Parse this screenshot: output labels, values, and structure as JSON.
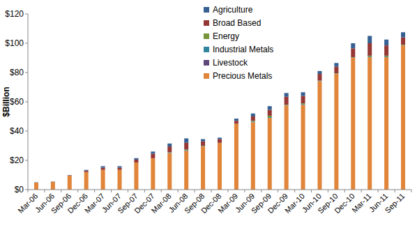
{
  "chart_data": {
    "type": "bar",
    "stacked": true,
    "grid": false,
    "legend": "top-right",
    "ylabel": "$Billion",
    "categories": [
      "Mar-06",
      "Jun-06",
      "Sep-06",
      "Dec-06",
      "Mar-07",
      "Jun-07",
      "Sep-07",
      "Dec-07",
      "Mar-08",
      "Jun-08",
      "Sep-08",
      "Dec-08",
      "Mar-09",
      "Jun-09",
      "Sep-09",
      "Dec-09",
      "Mar-10",
      "Jun-10",
      "Sep-10",
      "Dec-10",
      "Mar-11",
      "Jun-11",
      "Sep-11"
    ],
    "ylim": [
      0,
      120
    ],
    "yticks": [
      {
        "value": 0,
        "label": "$0"
      },
      {
        "value": 20,
        "label": "$20"
      },
      {
        "value": 40,
        "label": "$40"
      },
      {
        "value": 60,
        "label": "$60"
      },
      {
        "value": 80,
        "label": "$80"
      },
      {
        "value": 100,
        "label": "$100"
      },
      {
        "value": 120,
        "label": "$120"
      }
    ],
    "series": [
      {
        "name": "Agriculture",
        "color": "#376092",
        "values": [
          0.2,
          0.2,
          0.2,
          0.5,
          1,
          1,
          1,
          1.5,
          2,
          3,
          1.5,
          1,
          1.5,
          2,
          2.5,
          2.5,
          2.5,
          2,
          2.5,
          3.5,
          5,
          4,
          3.5
        ]
      },
      {
        "name": "Broad Based",
        "color": "#953735",
        "values": [
          0,
          0,
          0.2,
          1,
          1.5,
          1.5,
          2,
          3,
          4,
          4.5,
          3,
          2.5,
          2,
          3,
          4,
          5.5,
          5,
          4.5,
          4.5,
          6,
          8.5,
          7,
          5
        ]
      },
      {
        "name": "Energy",
        "color": "#77933C",
        "values": [
          0,
          0,
          0,
          0,
          0,
          0,
          0,
          0,
          0.2,
          0.5,
          0.2,
          0,
          0,
          0.5,
          1,
          0.3,
          0.5,
          0.3,
          0.3,
          0.3,
          0.6,
          0.6,
          0.3
        ]
      },
      {
        "name": "Industrial Metals",
        "color": "#31859C",
        "values": [
          0,
          0,
          0,
          0,
          0,
          0,
          0,
          0,
          0.3,
          0.3,
          0.3,
          0,
          0,
          0.5,
          0.5,
          0.2,
          0.5,
          0.2,
          0.2,
          0.2,
          0.4,
          0.4,
          0.2
        ]
      },
      {
        "name": "Livestock",
        "color": "#5F497A",
        "values": [
          0,
          0,
          0,
          0,
          0,
          0,
          0,
          0,
          0,
          0.2,
          0,
          0,
          0,
          0,
          0,
          0,
          0,
          0,
          0,
          0,
          0,
          0,
          0
        ]
      },
      {
        "name": "Precious Metals",
        "color": "#E0853A",
        "values": [
          4.8,
          5.3,
          9.6,
          12,
          13.5,
          13.5,
          18.5,
          21.5,
          25,
          26.5,
          29.5,
          32,
          45,
          46,
          49,
          57.5,
          58,
          74,
          79,
          90,
          90.5,
          90.5,
          98.5
        ]
      }
    ]
  }
}
